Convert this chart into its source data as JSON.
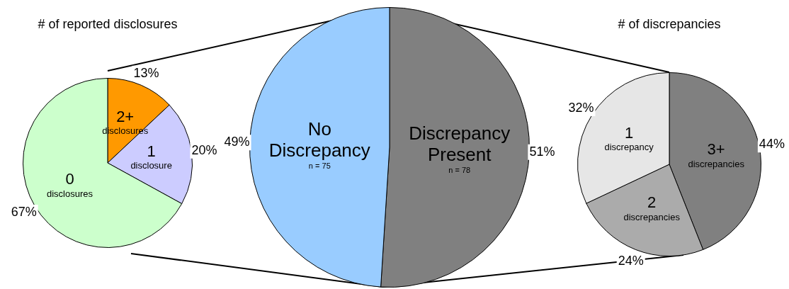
{
  "chart_data": [
    {
      "type": "pie",
      "title": "# of reported disclosures",
      "categories": [
        "2+\ndisclosures",
        "1\ndisclosure",
        "0\ndisclosures"
      ],
      "values": [
        13,
        20,
        67
      ],
      "colors": [
        "#ff9900",
        "#ccccff",
        "#ccffcc"
      ],
      "value_labels": [
        "13%",
        "20%",
        "67%"
      ]
    },
    {
      "type": "pie",
      "categories": [
        "Discrepancy\nPresent",
        "No\nDiscrepancy"
      ],
      "values": [
        51,
        49
      ],
      "colors": [
        "#808080",
        "#99ccff"
      ],
      "value_labels": [
        "51%",
        "49%"
      ],
      "annotations": [
        "n = 78",
        "n = 75"
      ]
    },
    {
      "type": "pie",
      "title": "# of discrepancies",
      "categories": [
        "3+\ndiscrepancies",
        "2\ndiscrepancies",
        "1\ndiscrepancy"
      ],
      "values": [
        44,
        24,
        32
      ],
      "colors": [
        "#808080",
        "#ababab",
        "#e6e6e6"
      ],
      "value_labels": [
        "44%",
        "24%",
        "32%"
      ]
    }
  ]
}
